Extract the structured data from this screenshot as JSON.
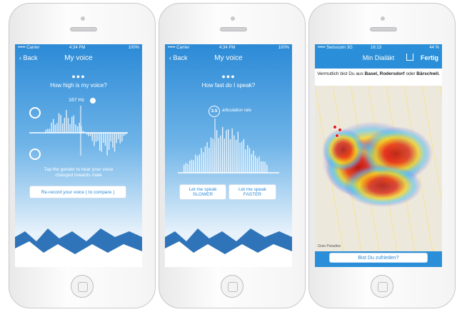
{
  "phone1": {
    "carrier": "••••• Carrier",
    "time": "4:34 PM",
    "battery": "100%",
    "back": "Back",
    "title": "My voice",
    "question": "How high is my voice?",
    "pitch": "167 Hz",
    "hint": "Tap the gender to hear your voice changed towards male",
    "button": "Re-record your voice ( to compare )"
  },
  "phone2": {
    "carrier": "••••• Carrier",
    "time": "4:34 PM",
    "battery": "100%",
    "back": "Back",
    "title": "My voice",
    "question": "How fast do I speak?",
    "rate": "3.5",
    "rate_label": "articulation rate",
    "slower_top": "Let me speak",
    "slower": "SLOWER",
    "faster_top": "Let me speak",
    "faster": "FASTER"
  },
  "phone3": {
    "carrier": "••••• Swisscom 3G",
    "time": "16:13",
    "battery": "44 %",
    "title": "Min Dialäkt",
    "done": "Fertig",
    "banner_pre": "Vermutlich bist Du aus ",
    "banner_places": "Basel, Rodersdorf",
    "banner_mid": " oder ",
    "banner_last": "Bärschwil.",
    "button": "Bist Du zufrieden?",
    "map_label": "Gran Paradiso"
  }
}
